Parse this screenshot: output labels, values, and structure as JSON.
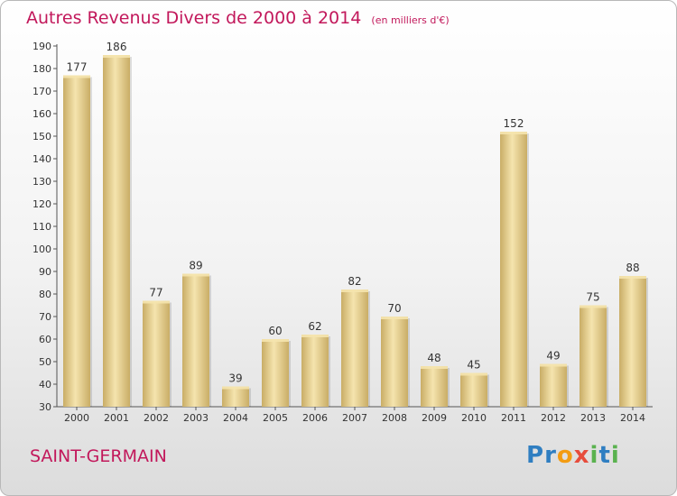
{
  "chart_data": {
    "type": "bar",
    "title": "Autres Revenus Divers de 2000 à 2014",
    "unit_note": "(en milliers d'€)",
    "categories": [
      "2000",
      "2001",
      "2002",
      "2003",
      "2004",
      "2005",
      "2006",
      "2007",
      "2008",
      "2009",
      "2010",
      "2011",
      "2012",
      "2013",
      "2014"
    ],
    "values": [
      177,
      186,
      77,
      89,
      39,
      60,
      62,
      82,
      70,
      48,
      45,
      152,
      49,
      75,
      88
    ],
    "ylim": [
      30,
      190
    ],
    "yticks": [
      30,
      40,
      50,
      60,
      70,
      80,
      90,
      100,
      110,
      120,
      130,
      140,
      150,
      160,
      170,
      180,
      190
    ],
    "grid": false,
    "bar_color": "#e8cf88",
    "bar_highlight": "#f5e4ae",
    "bar_shadow": "#c9ad66",
    "title_color": "#c2185b"
  },
  "footer": {
    "place": "SAINT-GERMAIN",
    "logo_letters": [
      {
        "ch": "P",
        "color": "#2f7ec1"
      },
      {
        "ch": "r",
        "color": "#2f7ec1"
      },
      {
        "ch": "o",
        "color": "#f39c12"
      },
      {
        "ch": "x",
        "color": "#e74c3c"
      },
      {
        "ch": "i",
        "color": "#5ab24f"
      },
      {
        "ch": "t",
        "color": "#2f7ec1"
      },
      {
        "ch": "i",
        "color": "#5ab24f"
      }
    ]
  }
}
